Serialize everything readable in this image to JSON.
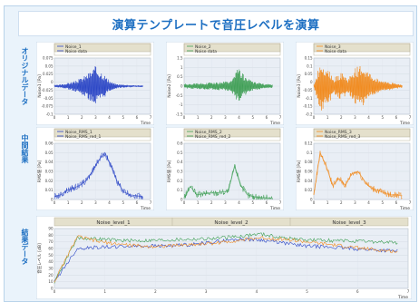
{
  "page_title": "演算テンプレートで音圧レベルを演算",
  "row_labels": [
    "オリジナルデータ",
    "中間結果",
    "結果データ"
  ],
  "colors": {
    "blue": "#2a45c6",
    "green": "#3f9f55",
    "orange": "#f28a1c",
    "accent": "#1d6fc2"
  },
  "chart_data": [
    {
      "type": "line",
      "legend": [
        "Noise_1",
        "Noise data"
      ],
      "ylabel": "Noise1 [Pa]",
      "xlabel": "Time",
      "xlim": [
        0,
        7
      ],
      "ylim": [
        -0.1,
        0.1
      ],
      "yticks": [
        "0.075",
        "0.05",
        "0.025",
        "0",
        "-0.025",
        "-0.05",
        "-0.075",
        "-0.1"
      ],
      "xticks": [
        "0",
        "1",
        "2",
        "3",
        "4",
        "5",
        "6",
        "7"
      ],
      "series": [
        {
          "color": "#2a45c6",
          "values": [
            0.004,
            0.006,
            0.012,
            0.018,
            0.03,
            0.048,
            0.072,
            0.055,
            0.02,
            0.008,
            0.006,
            0.004,
            0.003,
            0.003
          ]
        }
      ]
    },
    {
      "type": "line",
      "legend": [
        "Noise_2",
        "Noise data"
      ],
      "ylabel": "Noise2 [Pa]",
      "xlabel": "Time",
      "xlim": [
        0,
        7
      ],
      "ylim": [
        -1.5,
        1.5
      ],
      "yticks": [
        "1.5",
        "1",
        "0.5",
        "0",
        "-0.5",
        "-1",
        "-1.5"
      ],
      "xticks": [
        "0",
        "1",
        "2",
        "3",
        "4",
        "5",
        "6",
        "7"
      ],
      "series": [
        {
          "color": "#3f9f55",
          "values": [
            0.12,
            0.14,
            0.16,
            0.18,
            0.2,
            0.22,
            0.25,
            0.3,
            1.05,
            0.5,
            0.28,
            0.18,
            0.12,
            0.1
          ]
        }
      ]
    },
    {
      "type": "line",
      "legend": [
        "Noise_3",
        "Noise data"
      ],
      "ylabel": "Noise3 [Pa]",
      "xlabel": "Time",
      "xlim": [
        0,
        7
      ],
      "ylim": [
        -0.2,
        0.2
      ],
      "yticks": [
        "0.15",
        "0.1",
        "0.05",
        "0",
        "-0.05",
        "-0.1",
        "-0.15",
        "-0.2"
      ],
      "xticks": [
        "0",
        "1",
        "2",
        "3",
        "4",
        "5",
        "6",
        "7"
      ],
      "series": [
        {
          "color": "#f28a1c",
          "values": [
            0.01,
            0.18,
            0.14,
            0.06,
            0.1,
            0.05,
            0.13,
            0.15,
            0.1,
            0.06,
            0.04,
            0.03,
            0.02,
            0.01
          ]
        }
      ]
    },
    {
      "type": "line",
      "legend": [
        "Noise_RMS_1",
        "Noise_RMS_red_1"
      ],
      "ylabel": "RMS値 [Pa]",
      "xlabel": "Time",
      "xlim": [
        0,
        7
      ],
      "ylim": [
        0,
        0.06
      ],
      "yticks": [
        "0.06",
        "0.05",
        "0.04",
        "0.03",
        "0.02",
        "0.01",
        "0"
      ],
      "xticks": [
        "0",
        "1",
        "2",
        "3",
        "4",
        "5",
        "6",
        "7"
      ],
      "series": [
        {
          "color": "#2a45c6",
          "values": [
            0.003,
            0.005,
            0.01,
            0.012,
            0.015,
            0.02,
            0.03,
            0.042,
            0.05,
            0.035,
            0.018,
            0.008,
            0.005,
            0.004,
            0.003
          ]
        }
      ]
    },
    {
      "type": "line",
      "legend": [
        "Noise_RMS_2",
        "Noise_RMS_red_2"
      ],
      "ylabel": "RMS値 [Pa]",
      "xlabel": "Time",
      "xlim": [
        0,
        7
      ],
      "ylim": [
        0,
        0.6
      ],
      "yticks": [
        "0.6",
        "0.5",
        "0.4",
        "0.3",
        "0.2",
        "0.1",
        "0"
      ],
      "xticks": [
        "0",
        "1",
        "2",
        "3",
        "4",
        "5",
        "6",
        "7"
      ],
      "series": [
        {
          "color": "#3f9f55",
          "values": [
            0.02,
            0.14,
            0.05,
            0.06,
            0.07,
            0.07,
            0.08,
            0.09,
            0.36,
            0.15,
            0.05,
            0.03,
            0.02,
            0.02,
            0.01
          ]
        }
      ]
    },
    {
      "type": "line",
      "legend": [
        "Noise_RMS_3",
        "Noise_RMS_red_3"
      ],
      "ylabel": "RMS値 [Pa]",
      "xlabel": "Time",
      "xlim": [
        0,
        7
      ],
      "ylim": [
        0,
        0.12
      ],
      "yticks": [
        "0.12",
        "0.1",
        "0.08",
        "0.06",
        "0.04",
        "0.02",
        "0"
      ],
      "xticks": [
        "0",
        "1",
        "2",
        "3",
        "4",
        "5",
        "6",
        "7"
      ],
      "series": [
        {
          "color": "#f28a1c",
          "values": [
            0.01,
            0.1,
            0.07,
            0.03,
            0.045,
            0.03,
            0.055,
            0.06,
            0.04,
            0.025,
            0.02,
            0.015,
            0.01,
            0.01,
            0.008
          ]
        }
      ]
    },
    {
      "type": "line",
      "legend": [
        "Noise_level_1",
        "Noise_level_2",
        "Noise_level_3"
      ],
      "ylabel": "音圧レベル [dB]",
      "xlabel": "Time",
      "xlim": [
        0,
        7
      ],
      "ylim": [
        0,
        90
      ],
      "yticks": [
        "90",
        "80",
        "70",
        "60",
        "50",
        "40",
        "30",
        "20",
        "10",
        "0"
      ],
      "xticks": [
        "0",
        "1",
        "2",
        "3",
        "4",
        "5",
        "6",
        "7"
      ],
      "series": [
        {
          "name": "Noise_level_1",
          "color": "#2a45c6",
          "values": [
            10,
            60,
            62,
            63,
            64,
            64,
            66,
            70,
            74,
            73,
            68,
            64,
            62,
            60,
            58,
            56
          ]
        },
        {
          "name": "Noise_level_2",
          "color": "#3f9f55",
          "values": [
            10,
            76,
            74,
            72,
            72,
            73,
            74,
            75,
            78,
            82,
            76,
            73,
            72,
            71,
            70,
            69
          ]
        },
        {
          "name": "Noise_level_3",
          "color": "#f28a1c",
          "values": [
            10,
            78,
            70,
            66,
            63,
            64,
            66,
            68,
            72,
            76,
            74,
            70,
            66,
            62,
            58,
            55
          ]
        }
      ]
    }
  ]
}
